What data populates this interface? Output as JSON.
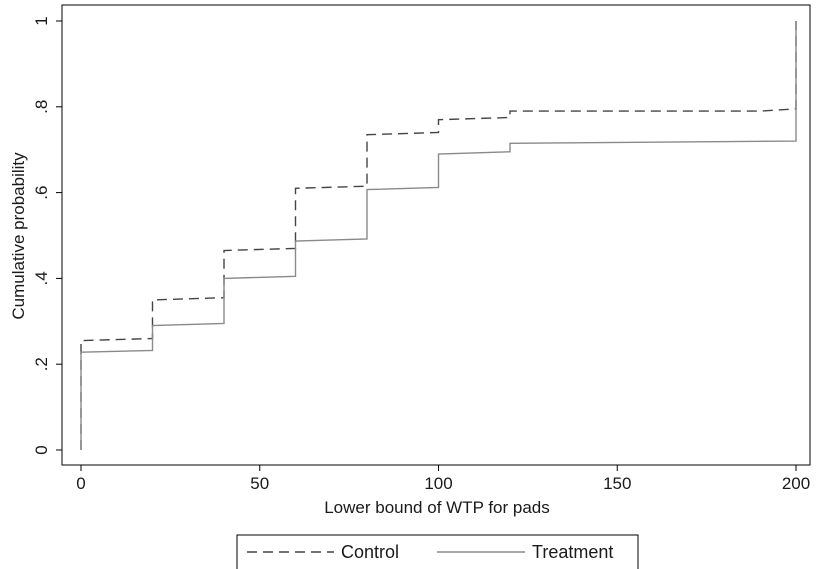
{
  "chart_data": {
    "type": "line",
    "title": "",
    "xlabel": "Lower bound of WTP for pads",
    "ylabel": "Cumulative probability",
    "xlim": [
      0,
      200
    ],
    "ylim": [
      0,
      1
    ],
    "xticks": [
      0,
      50,
      100,
      150,
      200
    ],
    "xtick_labels": [
      "0",
      "50",
      "100",
      "150",
      "200"
    ],
    "yticks": [
      0,
      0.2,
      0.4,
      0.6,
      0.8,
      1
    ],
    "ytick_labels": [
      "0",
      ".2",
      ".4",
      ".6",
      ".8",
      "1"
    ],
    "grid": false,
    "legend_position": "bottom",
    "series": [
      {
        "name": "Control",
        "style": "dashed",
        "color": "#444444",
        "points": [
          [
            0,
            0.0
          ],
          [
            0,
            0.255
          ],
          [
            20,
            0.26
          ],
          [
            20,
            0.35
          ],
          [
            40,
            0.355
          ],
          [
            40,
            0.465
          ],
          [
            60,
            0.47
          ],
          [
            60,
            0.61
          ],
          [
            80,
            0.615
          ],
          [
            80,
            0.735
          ],
          [
            100,
            0.74
          ],
          [
            100,
            0.77
          ],
          [
            120,
            0.775
          ],
          [
            120,
            0.79
          ],
          [
            190,
            0.79
          ],
          [
            200,
            0.795
          ],
          [
            200,
            1.0
          ]
        ]
      },
      {
        "name": "Treatment",
        "style": "solid",
        "color": "#8a8a8a",
        "points": [
          [
            0,
            0.0
          ],
          [
            0,
            0.228
          ],
          [
            20,
            0.232
          ],
          [
            20,
            0.29
          ],
          [
            40,
            0.295
          ],
          [
            40,
            0.4
          ],
          [
            60,
            0.405
          ],
          [
            60,
            0.487
          ],
          [
            80,
            0.492
          ],
          [
            80,
            0.607
          ],
          [
            100,
            0.612
          ],
          [
            100,
            0.69
          ],
          [
            120,
            0.695
          ],
          [
            120,
            0.715
          ],
          [
            200,
            0.72
          ],
          [
            200,
            1.0
          ]
        ]
      }
    ]
  }
}
